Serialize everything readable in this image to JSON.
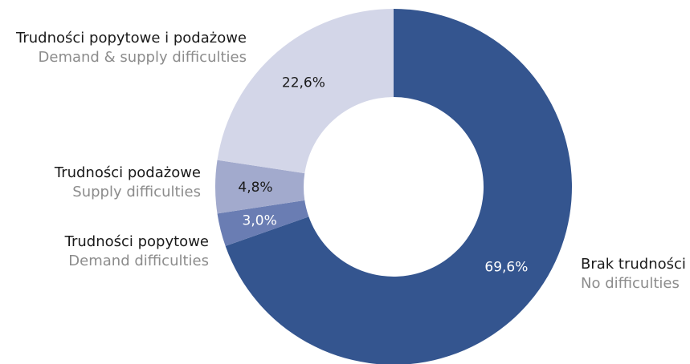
{
  "chart_data": {
    "type": "pie",
    "donut": true,
    "slices": [
      {
        "label_pl": "Brak trudności",
        "label_en": "No difficulties",
        "value": 69.6,
        "value_label": "69,6%",
        "color": "#34558f",
        "value_text_color": "#ffffff"
      },
      {
        "label_pl": "Trudności popytowe",
        "label_en": "Demand difficulties",
        "value": 3.0,
        "value_label": "3,0%",
        "color": "#6a7db3",
        "value_text_color": "#ffffff"
      },
      {
        "label_pl": "Trudności podażowe",
        "label_en": "Supply difficulties",
        "value": 4.8,
        "value_label": "4,8%",
        "color": "#a2aacd",
        "value_text_color": "#1a1a1a"
      },
      {
        "label_pl": "Trudności popytowe i podażowe",
        "label_en": "Demand & supply difficulties",
        "value": 22.6,
        "value_label": "22,6%",
        "color": "#d3d6e8",
        "value_text_color": "#1a1a1a"
      }
    ]
  }
}
